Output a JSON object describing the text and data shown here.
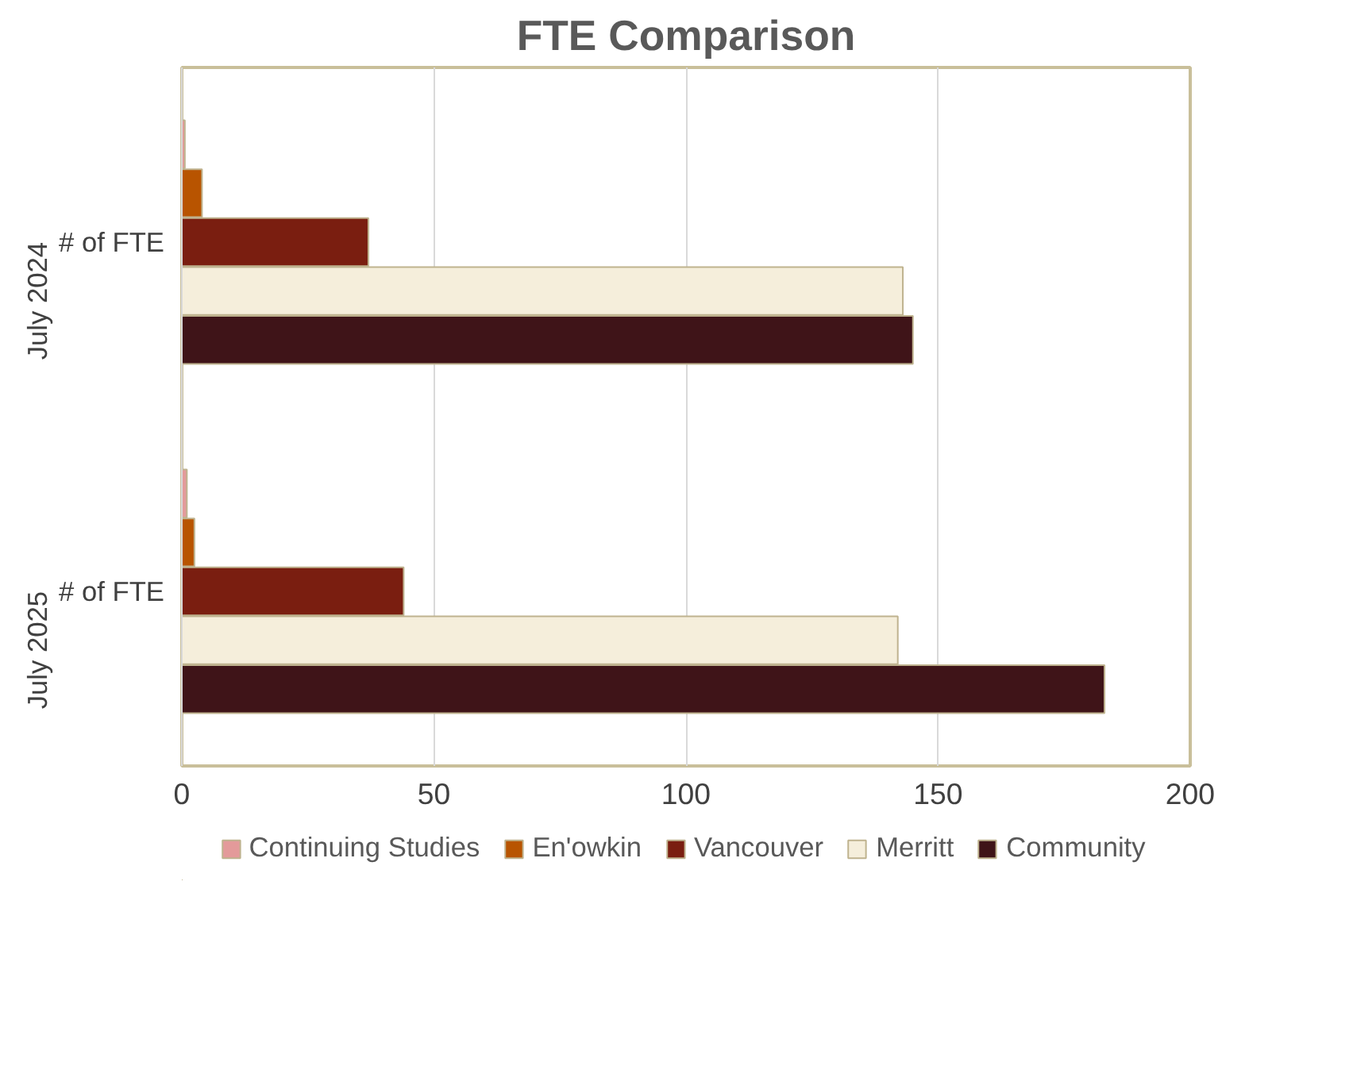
{
  "chart_data": {
    "type": "bar",
    "orientation": "horizontal",
    "title": "FTE Comparison",
    "categories": [
      "# of FTE",
      "# of FTE"
    ],
    "annotations": [
      "July 2024",
      "July 2025"
    ],
    "series": [
      {
        "name": "Continuing Studies",
        "color": "#e39a9a",
        "values": [
          0.6,
          1
        ]
      },
      {
        "name": "En'owkin",
        "color": "#b85400",
        "values": [
          4,
          2.5
        ]
      },
      {
        "name": "Vancouver",
        "color": "#7a1e10",
        "values": [
          37,
          44
        ]
      },
      {
        "name": "Merritt",
        "color": "#f5eedb",
        "values": [
          143,
          142
        ]
      },
      {
        "name": "Community",
        "color": "#3f1418",
        "values": [
          145,
          183
        ]
      }
    ],
    "xlim": [
      0,
      200
    ],
    "xticks": [
      0,
      50,
      100,
      150,
      200
    ],
    "grid": "x",
    "legend": "bottom"
  }
}
